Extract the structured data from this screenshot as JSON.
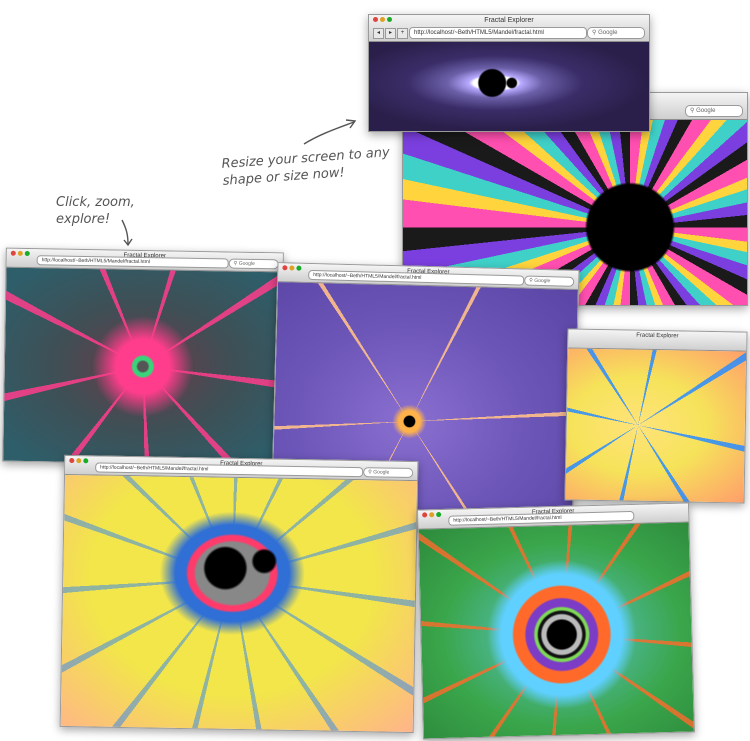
{
  "annotations": {
    "click_line1": "Click, zoom,",
    "click_line2": "explore!",
    "resize_line1": "Resize your screen to any",
    "resize_line2": "shape or size now!"
  },
  "browser": {
    "title": "Fractal Explorer",
    "url": "http://localhost/~Beth/HTML5/Mandel/fractal.html",
    "search_placeholder": "Google"
  },
  "windows": [
    {
      "id": "top-small",
      "fractal": "mandelbrot-dark",
      "colors": [
        "#2a1f4a",
        "#6b5fa8",
        "#ffffff",
        "#000000"
      ]
    },
    {
      "id": "big-zoom",
      "fractal": "starburst",
      "colors": [
        "#ff4fb0",
        "#ffd43c",
        "#3fd0c8",
        "#000000"
      ]
    },
    {
      "id": "red-dendrite",
      "fractal": "dendrite",
      "colors": [
        "#2e5e6a",
        "#ff3d8c",
        "#3bd37a"
      ]
    },
    {
      "id": "purple-dendrite",
      "fractal": "dendrite",
      "colors": [
        "#6c56b8",
        "#ffc08a",
        "#000000"
      ]
    },
    {
      "id": "yellow-blue",
      "fractal": "dendrite",
      "colors": [
        "#f6e35a",
        "#2a8cff",
        "#ff9e6b"
      ]
    },
    {
      "id": "yellow-cardioid",
      "fractal": "cardioid",
      "colors": [
        "#f2e64a",
        "#3d8be8",
        "#000000"
      ]
    },
    {
      "id": "green-rings",
      "fractal": "rings",
      "colors": [
        "#3aa64b",
        "#ff6a2b",
        "#7c3cc6",
        "#000000"
      ]
    }
  ]
}
